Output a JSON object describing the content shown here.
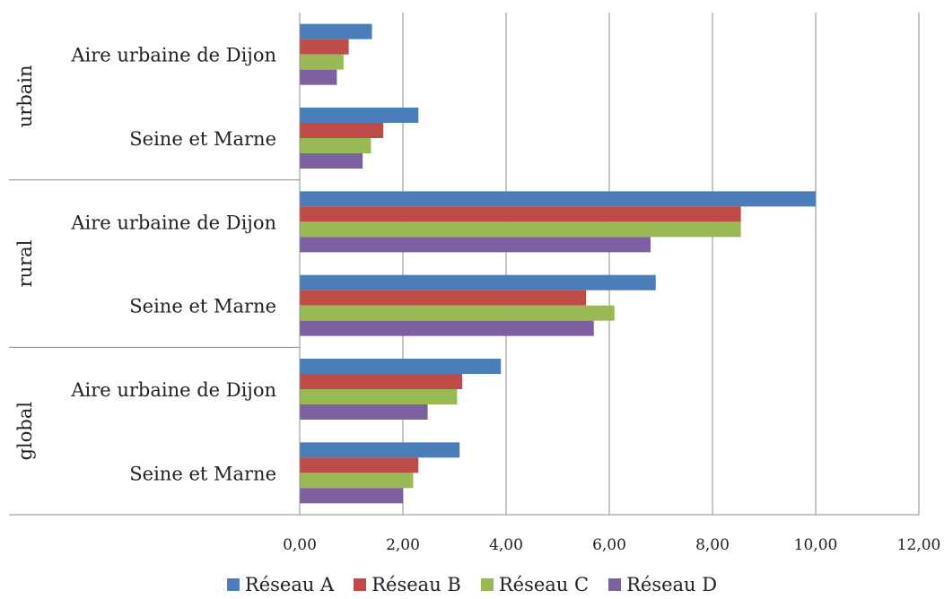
{
  "chart_data": {
    "type": "bar",
    "orientation": "horizontal",
    "groups": [
      {
        "label": "urbain",
        "categories": [
          "Aire urbaine de Dijon",
          "Seine et Marne"
        ]
      },
      {
        "label": "rural",
        "categories": [
          "Aire urbaine de Dijon",
          "Seine et Marne"
        ]
      },
      {
        "label": "global",
        "categories": [
          "Aire urbaine de Dijon",
          "Seine et Marne"
        ]
      }
    ],
    "series": [
      {
        "name": "Réseau A",
        "color": "#4a7ebb",
        "values": [
          1.4,
          2.3,
          10.0,
          6.9,
          3.9,
          3.1
        ]
      },
      {
        "name": "Réseau B",
        "color": "#be4b48",
        "values": [
          0.95,
          1.62,
          8.55,
          5.55,
          3.15,
          2.3
        ]
      },
      {
        "name": "Réseau C",
        "color": "#98b954",
        "values": [
          0.85,
          1.38,
          8.55,
          6.1,
          3.05,
          2.2
        ]
      },
      {
        "name": "Réseau D",
        "color": "#7d60a0",
        "values": [
          0.72,
          1.22,
          6.8,
          5.7,
          2.48,
          2.0
        ]
      }
    ],
    "xlim": [
      0,
      12
    ],
    "xticks": [
      "0,00",
      "2,00",
      "4,00",
      "6,00",
      "8,00",
      "10,00",
      "12,00"
    ],
    "grid": true,
    "legend": "bottom"
  }
}
